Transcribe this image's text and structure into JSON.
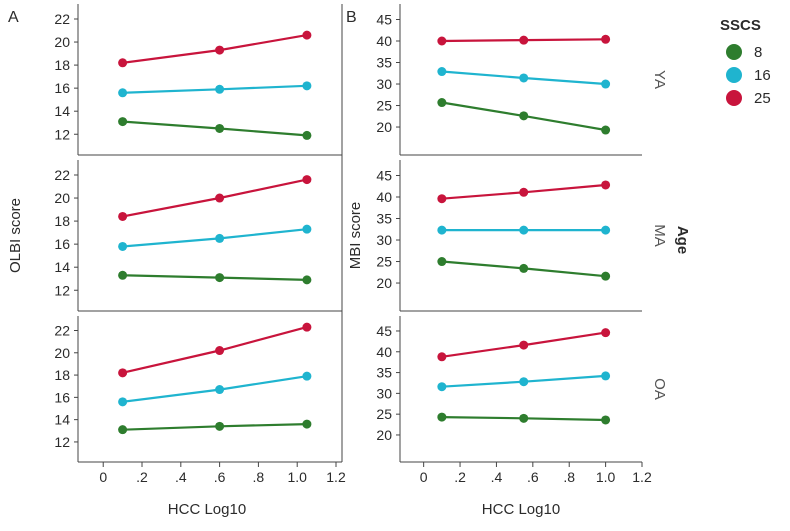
{
  "chart_data": {
    "type": "line",
    "legend": {
      "title": "SSCS",
      "placement": "top-right",
      "entries": [
        {
          "label": "8",
          "color": "#2e7d2e"
        },
        {
          "label": "16",
          "color": "#1fb4cf"
        },
        {
          "label": "25",
          "color": "#c8143c"
        }
      ]
    },
    "facet_title": "Age",
    "rows": [
      "YA",
      "MA",
      "OA"
    ],
    "x_axis": {
      "label": "HCC Log10",
      "ticks": [
        0,
        0.2,
        0.4,
        0.6,
        0.8,
        1.0,
        1.2
      ],
      "tick_labels": [
        "0",
        ".2",
        ".4",
        ".6",
        ".8",
        "1.0",
        "1.2"
      ]
    },
    "panels": [
      {
        "letter": "A",
        "ylabel": "OLBI score",
        "yticks": [
          12,
          14,
          16,
          18,
          20,
          22
        ],
        "xlim": [
          -0.13,
          1.2
        ],
        "ylim": [
          10.2,
          23.3
        ],
        "rows": [
          {
            "name": "YA",
            "series": [
              {
                "name": "8",
                "x": [
                  0.1,
                  0.6,
                  1.05
                ],
                "y": [
                  13.1,
                  12.5,
                  11.9
                ]
              },
              {
                "name": "16",
                "x": [
                  0.1,
                  0.6,
                  1.05
                ],
                "y": [
                  15.6,
                  15.9,
                  16.2
                ]
              },
              {
                "name": "25",
                "x": [
                  0.1,
                  0.6,
                  1.05
                ],
                "y": [
                  18.2,
                  19.3,
                  20.6
                ]
              }
            ]
          },
          {
            "name": "MA",
            "series": [
              {
                "name": "8",
                "x": [
                  0.1,
                  0.6,
                  1.05
                ],
                "y": [
                  13.3,
                  13.1,
                  12.9
                ]
              },
              {
                "name": "16",
                "x": [
                  0.1,
                  0.6,
                  1.05
                ],
                "y": [
                  15.8,
                  16.5,
                  17.3
                ]
              },
              {
                "name": "25",
                "x": [
                  0.1,
                  0.6,
                  1.05
                ],
                "y": [
                  18.4,
                  20.0,
                  21.6
                ]
              }
            ]
          },
          {
            "name": "OA",
            "series": [
              {
                "name": "8",
                "x": [
                  0.1,
                  0.6,
                  1.05
                ],
                "y": [
                  13.1,
                  13.4,
                  13.6
                ]
              },
              {
                "name": "16",
                "x": [
                  0.1,
                  0.6,
                  1.05
                ],
                "y": [
                  15.6,
                  16.7,
                  17.9
                ]
              },
              {
                "name": "25",
                "x": [
                  0.1,
                  0.6,
                  1.05
                ],
                "y": [
                  18.2,
                  20.2,
                  22.3
                ]
              }
            ]
          }
        ]
      },
      {
        "letter": "B",
        "ylabel": "MBI score",
        "yticks": [
          20,
          25,
          30,
          35,
          40,
          45
        ],
        "xlim": [
          -0.13,
          1.2
        ],
        "ylim": [
          13.5,
          48.6
        ],
        "rows": [
          {
            "name": "YA",
            "series": [
              {
                "name": "8",
                "x": [
                  0.1,
                  0.55,
                  1.0
                ],
                "y": [
                  25.7,
                  22.6,
                  19.3
                ]
              },
              {
                "name": "16",
                "x": [
                  0.1,
                  0.55,
                  1.0
                ],
                "y": [
                  32.9,
                  31.4,
                  30.0
                ]
              },
              {
                "name": "25",
                "x": [
                  0.1,
                  0.55,
                  1.0
                ],
                "y": [
                  40.0,
                  40.2,
                  40.4
                ]
              }
            ]
          },
          {
            "name": "MA",
            "series": [
              {
                "name": "8",
                "x": [
                  0.1,
                  0.55,
                  1.0
                ],
                "y": [
                  25.0,
                  23.4,
                  21.6
                ]
              },
              {
                "name": "16",
                "x": [
                  0.1,
                  0.55,
                  1.0
                ],
                "y": [
                  32.3,
                  32.3,
                  32.3
                ]
              },
              {
                "name": "25",
                "x": [
                  0.1,
                  0.55,
                  1.0
                ],
                "y": [
                  39.6,
                  41.1,
                  42.8
                ]
              }
            ]
          },
          {
            "name": "OA",
            "series": [
              {
                "name": "8",
                "x": [
                  0.1,
                  0.55,
                  1.0
                ],
                "y": [
                  24.3,
                  24.0,
                  23.6
                ]
              },
              {
                "name": "16",
                "x": [
                  0.1,
                  0.55,
                  1.0
                ],
                "y": [
                  31.6,
                  32.8,
                  34.2
                ]
              },
              {
                "name": "25",
                "x": [
                  0.1,
                  0.55,
                  1.0
                ],
                "y": [
                  38.8,
                  41.6,
                  44.6
                ]
              }
            ]
          }
        ]
      }
    ]
  }
}
